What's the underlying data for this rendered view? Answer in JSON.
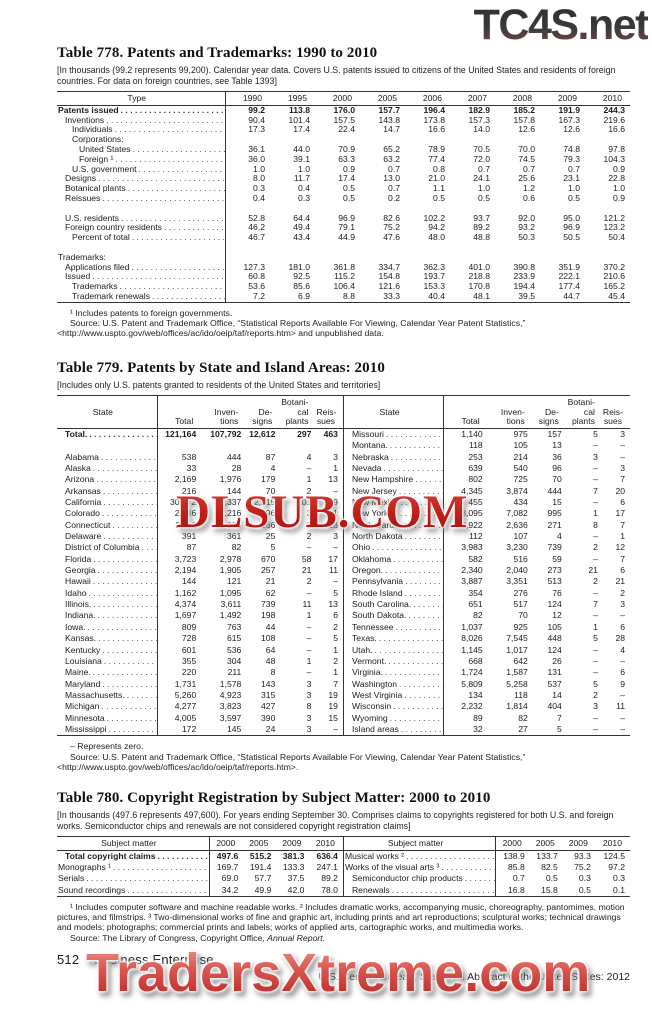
{
  "watermarks": {
    "top": "TC4S.net",
    "middle": "DLSUB.COM",
    "bottom": "TradersXtreme.com"
  },
  "colors": {
    "watermark_red": "#c01d18",
    "watermark_dark": "#38383c",
    "text": "#1c1c1c"
  },
  "table778": {
    "title": "Table 778. Patents and Trademarks: 1990 to 2010",
    "subtitle": "[In thousands (99.2 represents 99,200). Calendar year data. Covers U.S. patents issued to citizens of the United States and residents of foreign countries. For data on foreign countries, see Table 1393]",
    "type_header": "Type",
    "years": [
      "1990",
      "1995",
      "2000",
      "2005",
      "2006",
      "2007",
      "2008",
      "2009",
      "2010"
    ],
    "rows": [
      [
        "Patents issued",
        0,
        1,
        1,
        [
          "99.2",
          "113.8",
          "176.0",
          "157.7",
          "196.4",
          "182.9",
          "185.2",
          "191.9",
          "244.3"
        ]
      ],
      [
        "Inventions",
        1,
        0,
        1,
        [
          "90.4",
          "101.4",
          "157.5",
          "143.8",
          "173.8",
          "157.3",
          "157.8",
          "167.3",
          "219.6"
        ]
      ],
      [
        "Individuals",
        2,
        0,
        1,
        [
          "17.3",
          "17.4",
          "22.4",
          "14.7",
          "16.6",
          "14.0",
          "12.6",
          "12.6",
          "16.6"
        ]
      ],
      [
        "Corporations:",
        2,
        0,
        0,
        []
      ],
      [
        "United States",
        3,
        0,
        1,
        [
          "36.1",
          "44.0",
          "70.9",
          "65.2",
          "78.9",
          "70.5",
          "70.0",
          "74.8",
          "97.8"
        ]
      ],
      [
        "Foreign ¹",
        3,
        0,
        1,
        [
          "36.0",
          "39.1",
          "63.3",
          "63.2",
          "77.4",
          "72.0",
          "74.5",
          "79.3",
          "104.3"
        ]
      ],
      [
        "U.S. government",
        2,
        0,
        1,
        [
          "1.0",
          "1.0",
          "0.9",
          "0.7",
          "0.8",
          "0.7",
          "0.7",
          "0.7",
          "0.9"
        ]
      ],
      [
        "Designs",
        1,
        0,
        1,
        [
          "8.0",
          "11.7",
          "17.4",
          "13.0",
          "21.0",
          "24.1",
          "25.6",
          "23.1",
          "22.8"
        ]
      ],
      [
        "Botanical plants",
        1,
        0,
        1,
        [
          "0.3",
          "0.4",
          "0.5",
          "0.7",
          "1.1",
          "1.0",
          "1.2",
          "1.0",
          "1.0"
        ]
      ],
      [
        "Reissues",
        1,
        0,
        1,
        [
          "0.4",
          "0.3",
          "0.5",
          "0.2",
          "0.5",
          "0.5",
          "0.6",
          "0.5",
          "0.9"
        ]
      ],
      [
        "",
        0,
        0,
        0,
        []
      ],
      [
        "U.S. residents",
        1,
        0,
        1,
        [
          "52.8",
          "64.4",
          "96.9",
          "82.6",
          "102.2",
          "93.7",
          "92.0",
          "95.0",
          "121.2"
        ]
      ],
      [
        "Foreign country residents",
        1,
        0,
        1,
        [
          "46.2",
          "49.4",
          "79.1",
          "75.2",
          "94.2",
          "89.2",
          "93.2",
          "96.9",
          "123.2"
        ]
      ],
      [
        "Percent of total",
        2,
        0,
        1,
        [
          "46.7",
          "43.4",
          "44.9",
          "47.6",
          "48.0",
          "48.8",
          "50.3",
          "50.5",
          "50.4"
        ]
      ],
      [
        "",
        0,
        0,
        0,
        []
      ],
      [
        "Trademarks:",
        0,
        0,
        0,
        []
      ],
      [
        "Applications filed",
        1,
        0,
        1,
        [
          "127.3",
          "181.0",
          "361.8",
          "334.7",
          "362.3",
          "401.0",
          "390.8",
          "351.9",
          "370.2"
        ]
      ],
      [
        "Issued",
        1,
        0,
        1,
        [
          "60.8",
          "92.5",
          "115.2",
          "154.8",
          "193.7",
          "218.8",
          "233.9",
          "222.1",
          "210.6"
        ]
      ],
      [
        "Trademarks",
        2,
        0,
        1,
        [
          "53.6",
          "85.6",
          "106.4",
          "121.6",
          "153.3",
          "170.8",
          "194.4",
          "177.4",
          "165.2"
        ]
      ],
      [
        "Trademark renewals",
        2,
        0,
        1,
        [
          "7.2",
          "6.9",
          "8.8",
          "33.3",
          "40.4",
          "48.1",
          "39.5",
          "44.7",
          "45.4"
        ]
      ]
    ],
    "footnote": "¹ Includes patents to foreign governments.",
    "source": "Source: U.S. Patent and Trademark Office, “Statistical Reports Available For Viewing, Calendar Year Patent Statistics,” <http://www.uspto.gov/web/offices/ac/ido/oeip/taf/reports.htm> and unpublished data."
  },
  "table779": {
    "title": "Table 779. Patents by State and Island Areas: 2010",
    "subtitle": "[Includes only U.S. patents granted to residents of the United States and territories]",
    "state_header": "State",
    "col_headers": [
      "Total",
      "Inven-\ntions",
      "De-\nsigns",
      "Botani-\ncal\nplants",
      "Reis-\nsues"
    ],
    "rows": [
      [
        "Total.",
        [
          "121,164",
          "107,792",
          "12,612",
          "297",
          "463"
        ],
        "Missouri",
        [
          "1,140",
          "975",
          "157",
          "5",
          "3"
        ],
        1
      ],
      [
        "",
        [],
        "Montana.",
        [
          "118",
          "105",
          "13",
          "–",
          "–"
        ],
        0
      ],
      [
        "Alabama",
        [
          "538",
          "444",
          "87",
          "4",
          "3"
        ],
        "Nebraska",
        [
          "253",
          "214",
          "36",
          "3",
          "–"
        ],
        0
      ],
      [
        "Alaska",
        [
          "33",
          "28",
          "4",
          "–",
          "1"
        ],
        "Nevada",
        [
          "639",
          "540",
          "96",
          "–",
          "3"
        ],
        0
      ],
      [
        "Arizona",
        [
          "2,169",
          "1,976",
          "179",
          "1",
          "13"
        ],
        "New Hampshire",
        [
          "802",
          "725",
          "70",
          "–",
          "7"
        ],
        0
      ],
      [
        "Arkansas",
        [
          "216",
          "144",
          "70",
          "2",
          "–"
        ],
        "New Jersey",
        [
          "4,345",
          "3,874",
          "444",
          "7",
          "20"
        ],
        0
      ],
      [
        "California",
        [
          "30,072",
          "27,337",
          "2,515",
          "101",
          "119"
        ],
        "New Mexico",
        [
          "455",
          "434",
          "15",
          "–",
          "6"
        ],
        0
      ],
      [
        "Colorado",
        [
          "2,436",
          "2,216",
          "196",
          "3",
          "21"
        ],
        "New York",
        [
          "8,095",
          "7,082",
          "995",
          "1",
          "17"
        ],
        0
      ],
      [
        "Connecticut",
        [
          "2,112",
          "1,926",
          "166",
          "2",
          "18"
        ],
        "North Carolina",
        [
          "2,922",
          "2,636",
          "271",
          "8",
          "7"
        ],
        0
      ],
      [
        "Delaware",
        [
          "391",
          "361",
          "25",
          "2",
          "3"
        ],
        "North Dakota",
        [
          "112",
          "107",
          "4",
          "–",
          "1"
        ],
        0
      ],
      [
        "District of Columbia",
        [
          "87",
          "82",
          "5",
          "–",
          "–"
        ],
        "Ohio",
        [
          "3,983",
          "3,230",
          "739",
          "2",
          "12"
        ],
        0
      ],
      [
        "Florida",
        [
          "3,723",
          "2,978",
          "670",
          "58",
          "17"
        ],
        "Oklahoma",
        [
          "582",
          "516",
          "59",
          "–",
          "7"
        ],
        0
      ],
      [
        "Georgia",
        [
          "2,194",
          "1,905",
          "257",
          "21",
          "11"
        ],
        "Oregon.",
        [
          "2,340",
          "2,040",
          "273",
          "21",
          "6"
        ],
        0
      ],
      [
        "Hawaii",
        [
          "144",
          "121",
          "21",
          "2",
          "–"
        ],
        "Pennsylvania",
        [
          "3,887",
          "3,351",
          "513",
          "2",
          "21"
        ],
        0
      ],
      [
        "Idaho",
        [
          "1,162",
          "1,095",
          "62",
          "–",
          "5"
        ],
        "Rhode Island",
        [
          "354",
          "276",
          "76",
          "–",
          "2"
        ],
        0
      ],
      [
        "Illinois.",
        [
          "4,374",
          "3,611",
          "739",
          "11",
          "13"
        ],
        "South Carolina.",
        [
          "651",
          "517",
          "124",
          "7",
          "3"
        ],
        0
      ],
      [
        "Indiana.",
        [
          "1,697",
          "1,492",
          "198",
          "1",
          "6"
        ],
        "South Dakota.",
        [
          "82",
          "70",
          "12",
          "–",
          "–"
        ],
        0
      ],
      [
        "Iowa.",
        [
          "809",
          "763",
          "44",
          "–",
          "2"
        ],
        "Tennessee",
        [
          "1,037",
          "925",
          "105",
          "1",
          "6"
        ],
        0
      ],
      [
        "Kansas.",
        [
          "728",
          "615",
          "108",
          "–",
          "5"
        ],
        "Texas.",
        [
          "8,026",
          "7,545",
          "448",
          "5",
          "28"
        ],
        0
      ],
      [
        "Kentucky",
        [
          "601",
          "536",
          "64",
          "–",
          "1"
        ],
        "Utah.",
        [
          "1,145",
          "1,017",
          "124",
          "–",
          "4"
        ],
        0
      ],
      [
        "Louisiana",
        [
          "355",
          "304",
          "48",
          "1",
          "2"
        ],
        "Vermont.",
        [
          "668",
          "642",
          "26",
          "–",
          "–"
        ],
        0
      ],
      [
        "Maine.",
        [
          "220",
          "211",
          "8",
          "–",
          "1"
        ],
        "Virginia.",
        [
          "1,724",
          "1,587",
          "131",
          "–",
          "6"
        ],
        0
      ],
      [
        "Maryland",
        [
          "1,731",
          "1,578",
          "143",
          "3",
          "7"
        ],
        "Washington",
        [
          "5,809",
          "5,258",
          "537",
          "5",
          "9"
        ],
        0
      ],
      [
        "Massachusetts.",
        [
          "5,260",
          "4,923",
          "315",
          "3",
          "19"
        ],
        "West Virginia",
        [
          "134",
          "118",
          "14",
          "2",
          "–"
        ],
        0
      ],
      [
        "Michigan",
        [
          "4,277",
          "3,823",
          "427",
          "8",
          "19"
        ],
        "Wisconsin",
        [
          "2,232",
          "1,814",
          "404",
          "3",
          "11"
        ],
        0
      ],
      [
        "Minnesota",
        [
          "4,005",
          "3,597",
          "390",
          "3",
          "15"
        ],
        "Wyoming",
        [
          "89",
          "82",
          "7",
          "–",
          "–"
        ],
        0
      ],
      [
        "Mississippi",
        [
          "172",
          "145",
          "24",
          "3",
          "–"
        ],
        "Island areas",
        [
          "32",
          "27",
          "5",
          "–",
          "–"
        ],
        0
      ]
    ],
    "note": "– Represents zero.",
    "source": "Source: U.S. Patent and Trademark Office, “Statistical Reports Available For Viewing, Calendar Year Patent Statistics,” <http://www.uspto.gov/web/offices/ac/ido/oeip/taf/reports.htm>."
  },
  "table780": {
    "title": "Table 780. Copyright Registration by Subject Matter: 2000 to 2010",
    "subtitle": "[In thousands (497.6 represents 497,600). For years ending September 30. Comprises claims to copyrights registered for both U.S. and foreign works. Semiconductor chips and renewals are not considered copyright registration claims]",
    "subject_header": "Subject matter",
    "years": [
      "2000",
      "2005",
      "2009",
      "2010"
    ],
    "rows": [
      [
        "Total copyright claims",
        1,
        1,
        [
          "497.6",
          "515.2",
          "381.3",
          "636.4"
        ],
        "Musical works ²",
        0,
        [
          "138.9",
          "133.7",
          "93.3",
          "124.5"
        ]
      ],
      [
        "Monographs ¹",
        0,
        0,
        [
          "169.7",
          "191.4",
          "133.3",
          "247.1"
        ],
        "Works of the visual arts ³",
        0,
        [
          "85.8",
          "82.5",
          "75.2",
          "97.2"
        ]
      ],
      [
        "Serials",
        0,
        0,
        [
          "69.0",
          "57.7",
          "37.5",
          "89.2"
        ],
        "Semiconductor chip products",
        1,
        [
          "0.7",
          "0.5",
          "0.3",
          "0.3"
        ]
      ],
      [
        "Sound recordings",
        0,
        0,
        [
          "34.2",
          "49.9",
          "42.0",
          "78.0"
        ],
        "Renewals",
        1,
        [
          "16.8",
          "15.8",
          "0.5",
          "0.1"
        ]
      ]
    ],
    "footnotes": "¹ Includes computer software and machine readable works. ² Includes dramatic works, accompanying music, choreography, pantomimes, motion pictures, and filmstrips. ³ Two-dimensional works of fine and graphic art, including prints and art reproductions; sculptural works; technical drawings and models; photographs; commercial prints and labels; works of applied arts, cartographic works, and multimedia works.",
    "source_prefix": "Source: The Library of Congress, Copyright Office, ",
    "source_italic": "Annual Report."
  },
  "footer": {
    "page_number": "512",
    "section": "Business Enterprise",
    "credit": "U.S. Census Bureau, Statistical Abstract of the United States: 2012"
  }
}
